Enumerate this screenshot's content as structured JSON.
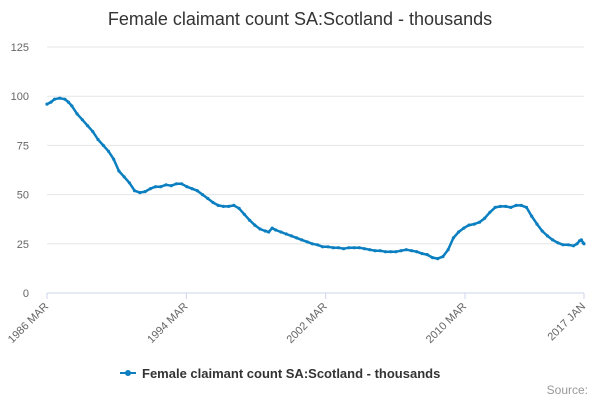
{
  "chart_data": {
    "type": "line",
    "title": "Female claimant count SA:Scotland - thousands",
    "xlabel": "",
    "ylabel": "",
    "ylim": [
      0,
      125
    ],
    "yticks": [
      0,
      25,
      50,
      75,
      100,
      125
    ],
    "xlim": [
      1986.17,
      2017.0
    ],
    "xticks": [
      {
        "label": "1986 MAR",
        "value": 1986.17
      },
      {
        "label": "1994 MAR",
        "value": 1994.17
      },
      {
        "label": "2002 MAR",
        "value": 2002.17
      },
      {
        "label": "2010 MAR",
        "value": 2010.17
      },
      {
        "label": "2017 JAN",
        "value": 2017.0
      }
    ],
    "grid": "horizontal",
    "legend_position": "bottom",
    "series": [
      {
        "name": "Female claimant count SA:Scotland - thousands",
        "color": "#0b7fc0",
        "points": [
          [
            1986.17,
            96
          ],
          [
            1986.4,
            97
          ],
          [
            1986.6,
            98.5
          ],
          [
            1986.9,
            99
          ],
          [
            1987.2,
            98.5
          ],
          [
            1987.4,
            97
          ],
          [
            1987.6,
            95
          ],
          [
            1987.9,
            91
          ],
          [
            1988.2,
            88
          ],
          [
            1988.5,
            85
          ],
          [
            1988.8,
            82
          ],
          [
            1989.1,
            78
          ],
          [
            1989.4,
            75
          ],
          [
            1989.7,
            72
          ],
          [
            1990.0,
            68
          ],
          [
            1990.3,
            62
          ],
          [
            1990.6,
            59
          ],
          [
            1990.9,
            56
          ],
          [
            1991.2,
            52
          ],
          [
            1991.5,
            51
          ],
          [
            1991.8,
            51.5
          ],
          [
            1992.1,
            53
          ],
          [
            1992.4,
            54
          ],
          [
            1992.7,
            54
          ],
          [
            1993.0,
            55
          ],
          [
            1993.3,
            54.5
          ],
          [
            1993.6,
            55.5
          ],
          [
            1993.9,
            55.5
          ],
          [
            1994.2,
            54
          ],
          [
            1994.5,
            53
          ],
          [
            1994.8,
            52
          ],
          [
            1995.1,
            50
          ],
          [
            1995.4,
            48
          ],
          [
            1995.7,
            46
          ],
          [
            1996.0,
            44.5
          ],
          [
            1996.3,
            44
          ],
          [
            1996.6,
            44
          ],
          [
            1996.9,
            44.5
          ],
          [
            1997.2,
            43
          ],
          [
            1997.5,
            40
          ],
          [
            1997.8,
            37
          ],
          [
            1998.1,
            34.5
          ],
          [
            1998.4,
            32.5
          ],
          [
            1998.7,
            31.5
          ],
          [
            1998.9,
            31
          ],
          [
            1999.1,
            33
          ],
          [
            1999.3,
            32
          ],
          [
            1999.6,
            31
          ],
          [
            1999.9,
            30
          ],
          [
            2000.2,
            29
          ],
          [
            2000.5,
            28
          ],
          [
            2000.8,
            27
          ],
          [
            2001.1,
            26
          ],
          [
            2001.4,
            25
          ],
          [
            2001.7,
            24.5
          ],
          [
            2002.0,
            23.5
          ],
          [
            2002.3,
            23.5
          ],
          [
            2002.6,
            23
          ],
          [
            2002.9,
            23
          ],
          [
            2003.2,
            22.5
          ],
          [
            2003.5,
            23
          ],
          [
            2003.8,
            23
          ],
          [
            2004.1,
            23
          ],
          [
            2004.4,
            22.5
          ],
          [
            2004.7,
            22
          ],
          [
            2005.0,
            21.5
          ],
          [
            2005.3,
            21.5
          ],
          [
            2005.6,
            21
          ],
          [
            2005.9,
            21
          ],
          [
            2006.2,
            21
          ],
          [
            2006.5,
            21.5
          ],
          [
            2006.8,
            22
          ],
          [
            2007.1,
            21.5
          ],
          [
            2007.4,
            21
          ],
          [
            2007.7,
            20
          ],
          [
            2008.0,
            19.5
          ],
          [
            2008.3,
            18
          ],
          [
            2008.6,
            17.5
          ],
          [
            2008.9,
            18.5
          ],
          [
            2009.2,
            22
          ],
          [
            2009.5,
            28
          ],
          [
            2009.8,
            31
          ],
          [
            2010.1,
            33
          ],
          [
            2010.4,
            34.5
          ],
          [
            2010.7,
            35
          ],
          [
            2011.0,
            36
          ],
          [
            2011.3,
            38
          ],
          [
            2011.6,
            41
          ],
          [
            2011.9,
            43.5
          ],
          [
            2012.2,
            44
          ],
          [
            2012.5,
            44
          ],
          [
            2012.8,
            43.5
          ],
          [
            2013.1,
            44.5
          ],
          [
            2013.4,
            44.5
          ],
          [
            2013.7,
            43.5
          ],
          [
            2014.0,
            39
          ],
          [
            2014.3,
            35
          ],
          [
            2014.6,
            31.5
          ],
          [
            2014.9,
            29
          ],
          [
            2015.2,
            27
          ],
          [
            2015.5,
            25.5
          ],
          [
            2015.8,
            24.5
          ],
          [
            2016.1,
            24.5
          ],
          [
            2016.4,
            24
          ],
          [
            2016.6,
            25
          ],
          [
            2016.75,
            26.5
          ],
          [
            2016.85,
            27
          ],
          [
            2016.95,
            25.5
          ],
          [
            2017.0,
            25
          ]
        ]
      }
    ],
    "legend_label": "Female claimant count SA:Scotland - thousands",
    "credit": "Source:"
  }
}
